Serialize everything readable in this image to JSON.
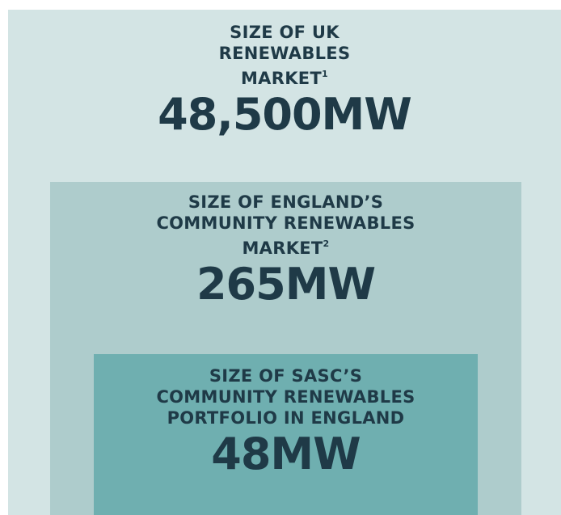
{
  "boxes": [
    {
      "title_lines": [
        "SIZE OF UK",
        "RENEWABLES",
        "MARKET"
      ],
      "footnote": "1",
      "value": "48,500MW"
    },
    {
      "title_lines": [
        "SIZE OF ENGLAND’S",
        "COMMUNITY RENEWABLES",
        "MARKET"
      ],
      "footnote": "2",
      "value": "265MW"
    },
    {
      "title_lines": [
        "SIZE OF SASC’S",
        "COMMUNITY RENEWABLES",
        "PORTFOLIO IN ENGLAND"
      ],
      "value": "48MW"
    }
  ]
}
